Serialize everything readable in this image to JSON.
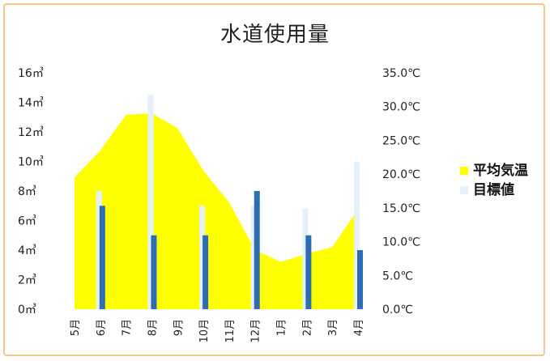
{
  "chart_data": {
    "type": "area",
    "title": "水道使用量",
    "categories": [
      "5月",
      "6月",
      "7月",
      "8月",
      "9月",
      "10月",
      "11月",
      "12月",
      "1月",
      "2月",
      "3月",
      "4月"
    ],
    "y_left_ticks": [
      "0㎥",
      "2㎥",
      "4㎥",
      "6㎥",
      "8㎥",
      "10㎥",
      "12㎥",
      "14㎥",
      "16㎥"
    ],
    "y_right_ticks": [
      "0.0℃",
      "5.0℃",
      "10.0℃",
      "15.0℃",
      "20.0℃",
      "25.0℃",
      "30.0℃",
      "35.0℃"
    ],
    "ylim_left": [
      0,
      16
    ],
    "ylim_right": [
      0,
      35
    ],
    "series": [
      {
        "name": "平均気温",
        "type": "area",
        "axis": "right",
        "color": "#ffff00",
        "values": [
          19.5,
          23.5,
          28.8,
          29.0,
          26.8,
          20.5,
          15.8,
          8.8,
          7.0,
          8.2,
          9.2,
          14.8
        ]
      },
      {
        "name": "目標値",
        "type": "bar",
        "axis": "left",
        "color": "#e4f0fa",
        "values": [
          0,
          8,
          0,
          14.5,
          0,
          7,
          0,
          7,
          0,
          6.8,
          0,
          10
        ]
      },
      {
        "name": "",
        "type": "bar",
        "axis": "left",
        "color": "#2e6db4",
        "values": [
          0,
          7,
          0,
          5,
          0,
          5,
          0,
          8,
          0,
          5,
          0,
          4
        ]
      }
    ],
    "legend": {
      "position": "right"
    },
    "grid": false
  },
  "legend_items": [
    {
      "label": "平均気温",
      "color": "#ffff00"
    },
    {
      "label": "目標値",
      "color": "#e4f0fa"
    }
  ]
}
